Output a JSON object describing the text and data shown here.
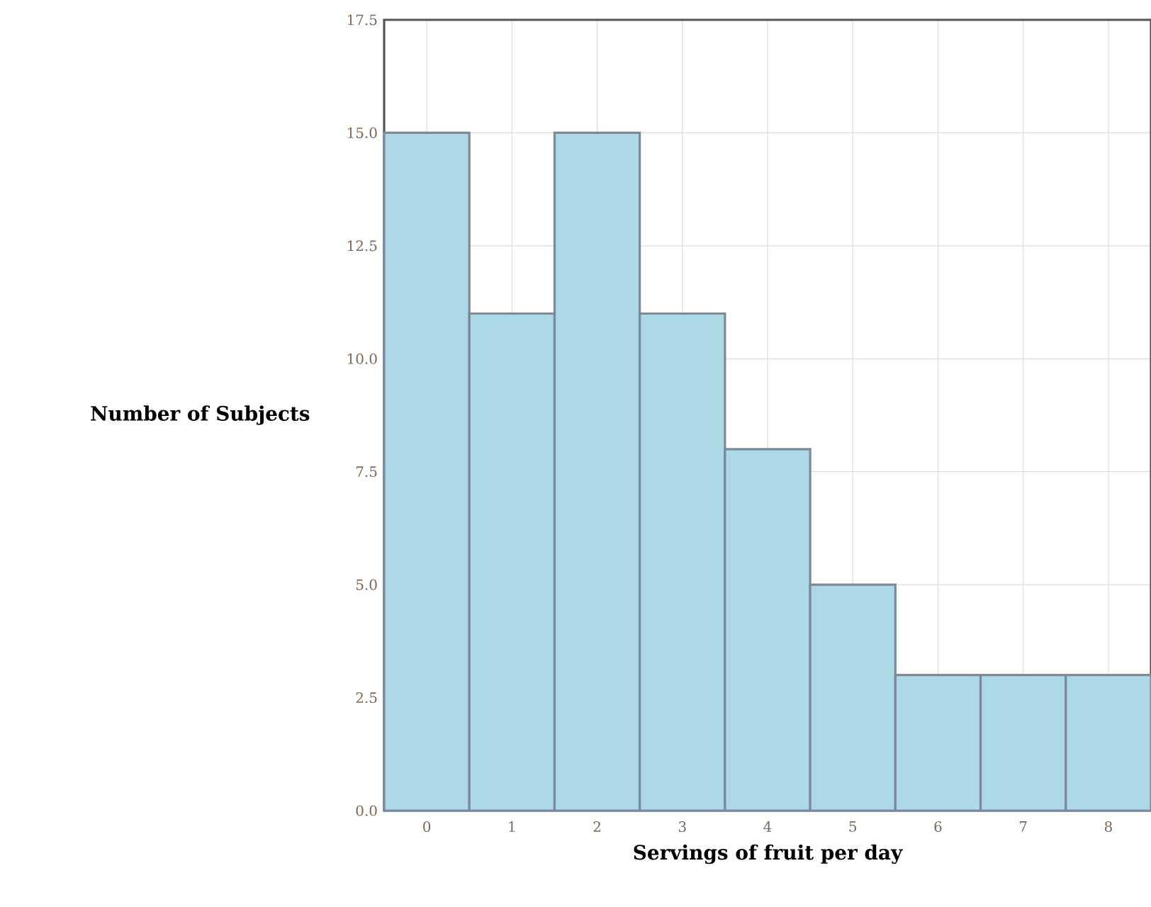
{
  "chart_data": {
    "type": "histogram",
    "xlabel": "Servings of fruit per day",
    "ylabel": "Number of Subjects",
    "bins": [
      -0.5,
      0.5,
      1.5,
      2.5,
      3.5,
      4.5,
      5.5,
      6.5,
      7.5,
      8.5
    ],
    "values": [
      15,
      11,
      15,
      11,
      8,
      5,
      3,
      3,
      3
    ],
    "color": "#add8e6",
    "xlim": [
      -0.5,
      8.5
    ],
    "xticks": [
      0,
      1,
      2,
      3,
      4,
      5,
      6,
      7,
      8
    ],
    "ylim": [
      0,
      17.5
    ],
    "yticks": [
      {
        "value": 0,
        "label": "0.0"
      },
      {
        "value": 2.5,
        "label": "2.5"
      },
      {
        "value": 5,
        "label": "5.0"
      },
      {
        "value": 7.5,
        "label": "7.5"
      },
      {
        "value": 10,
        "label": "10.0"
      },
      {
        "value": 12.5,
        "label": "12.5"
      },
      {
        "value": 15,
        "label": "15.0"
      },
      {
        "value": 17.5,
        "label": "17.5"
      }
    ],
    "grid": true
  }
}
